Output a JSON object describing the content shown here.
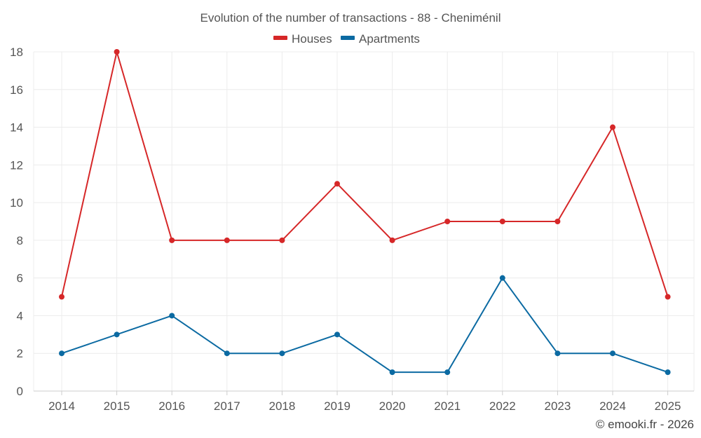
{
  "chart_data": {
    "type": "line",
    "title": "Evolution of the number of transactions - 88 - Cheniménil",
    "categories": [
      "2014",
      "2015",
      "2016",
      "2017",
      "2018",
      "2019",
      "2020",
      "2021",
      "2022",
      "2023",
      "2024",
      "2025"
    ],
    "series": [
      {
        "name": "Houses",
        "color": "#d62728",
        "values": [
          5,
          18,
          8,
          8,
          8,
          11,
          8,
          9,
          9,
          9,
          14,
          5
        ]
      },
      {
        "name": "Apartments",
        "color": "#0b6aa2",
        "values": [
          2,
          3,
          4,
          2,
          2,
          3,
          1,
          1,
          6,
          2,
          2,
          1
        ]
      }
    ],
    "ylim": [
      0,
      18
    ],
    "yticks": [
      0,
      2,
      4,
      6,
      8,
      10,
      12,
      14,
      16,
      18
    ],
    "xlabel": "",
    "ylabel": "",
    "grid": true,
    "legend_position": "top-center"
  },
  "footer": "© emooki.fr - 2026"
}
